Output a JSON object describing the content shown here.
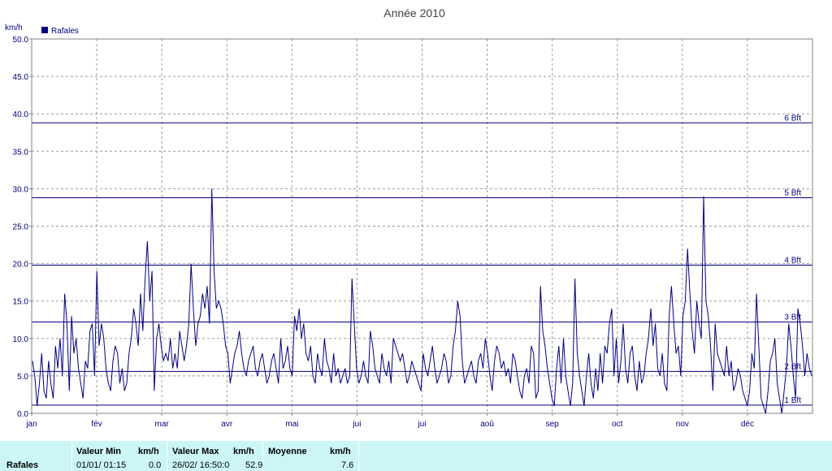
{
  "chart_data": {
    "type": "line",
    "title": "Année 2010",
    "ylabel": "km/h",
    "ylim": [
      0,
      50
    ],
    "yticks": [
      "0.0",
      "5.0",
      "10.0",
      "15.0",
      "20.0",
      "25.0",
      "30.0",
      "35.0",
      "40.0",
      "45.0",
      "50.0"
    ],
    "months": [
      "jan",
      "fév",
      "mar",
      "avr",
      "mai",
      "jui",
      "jui",
      "aoû",
      "sep",
      "oct",
      "nov",
      "déc"
    ],
    "grid": true,
    "legend": "top-left",
    "series": [
      {
        "name": "Rafales",
        "color": "#000080",
        "values": [
          7,
          5,
          1,
          4,
          8,
          3,
          2,
          7,
          4,
          2,
          9,
          6,
          10,
          5,
          16,
          12,
          3,
          13,
          8,
          10,
          6,
          4,
          2,
          7,
          6,
          11,
          12,
          5,
          19,
          9,
          12,
          10,
          6,
          4,
          3,
          7,
          9,
          8,
          4,
          6,
          3,
          4,
          8,
          10,
          14,
          12,
          9,
          16,
          11,
          18,
          23,
          15,
          19,
          3,
          10,
          12,
          9,
          7,
          8,
          7,
          10,
          6,
          8,
          6,
          11,
          9,
          7,
          9,
          12,
          20,
          14,
          9,
          12,
          13,
          16,
          14,
          17,
          12,
          30,
          19,
          14,
          15,
          14,
          12,
          9,
          8,
          4,
          6,
          8,
          9,
          11,
          8,
          6,
          5,
          7,
          8,
          9,
          6,
          5,
          7,
          8,
          6,
          4,
          5,
          7,
          8,
          6,
          4,
          10,
          6,
          7,
          9,
          6,
          5,
          13,
          11,
          14,
          10,
          12,
          8,
          7,
          9,
          5,
          4,
          8,
          6,
          5,
          10,
          7,
          6,
          4,
          8,
          5,
          6,
          4,
          5,
          6,
          4,
          5,
          18,
          12,
          6,
          4,
          5,
          7,
          5,
          4,
          11,
          9,
          6,
          5,
          4,
          8,
          6,
          5,
          7,
          4,
          10,
          9,
          8,
          7,
          8,
          6,
          4,
          5,
          7,
          6,
          5,
          4,
          3,
          8,
          6,
          5,
          7,
          9,
          6,
          4,
          5,
          6,
          8,
          7,
          4,
          5,
          9,
          11,
          15,
          13,
          7,
          4,
          5,
          6,
          7,
          5,
          4,
          7,
          8,
          6,
          10,
          8,
          5,
          3,
          7,
          9,
          8,
          6,
          7,
          5,
          6,
          4,
          8,
          7,
          5,
          3,
          2,
          5,
          6,
          4,
          9,
          8,
          2,
          3,
          17,
          11,
          9,
          6,
          4,
          2,
          1,
          6,
          9,
          4,
          10,
          5,
          3,
          1,
          4,
          18,
          8,
          5,
          3,
          1,
          5,
          8,
          4,
          2,
          6,
          3,
          8,
          4,
          9,
          8,
          12,
          14,
          5,
          10,
          4,
          7,
          12,
          6,
          4,
          8,
          9,
          5,
          3,
          7,
          4,
          5,
          8,
          10,
          14,
          9,
          12,
          6,
          5,
          8,
          4,
          3,
          13,
          17,
          12,
          8,
          9,
          5,
          13,
          15,
          22,
          16,
          11,
          8,
          15,
          12,
          10,
          29,
          15,
          13,
          9,
          3,
          12,
          8,
          7,
          6,
          5,
          9,
          5,
          7,
          3,
          4,
          6,
          5,
          3,
          2,
          1,
          3,
          8,
          6,
          16,
          9,
          2,
          1,
          0,
          3,
          7,
          8,
          10,
          4,
          2,
          0,
          3,
          6,
          12,
          9,
          5,
          2,
          14,
          12,
          9,
          5,
          8,
          6,
          5
        ]
      }
    ],
    "bft_lines": [
      {
        "label": "1 Bft",
        "value": 1.1
      },
      {
        "label": "2 Bft",
        "value": 5.6
      },
      {
        "label": "3 Bft",
        "value": 12.2
      },
      {
        "label": "4 Bft",
        "value": 19.8
      },
      {
        "label": "5 Bft",
        "value": 28.8
      },
      {
        "label": "6 Bft",
        "value": 38.8
      }
    ]
  },
  "stats": {
    "row_label": "Rafales",
    "min_label": "Valeur Min",
    "min_unit": "km/h",
    "min_datetime": "01/01/  01:15",
    "min_value": "0.0",
    "max_label": "Valeur Max",
    "max_unit": "km/h",
    "max_datetime": "26/02/  16:50:0",
    "max_value": "52.9",
    "avg_label": "Moyenne",
    "avg_unit": "km/h",
    "avg_value": "7.6"
  }
}
